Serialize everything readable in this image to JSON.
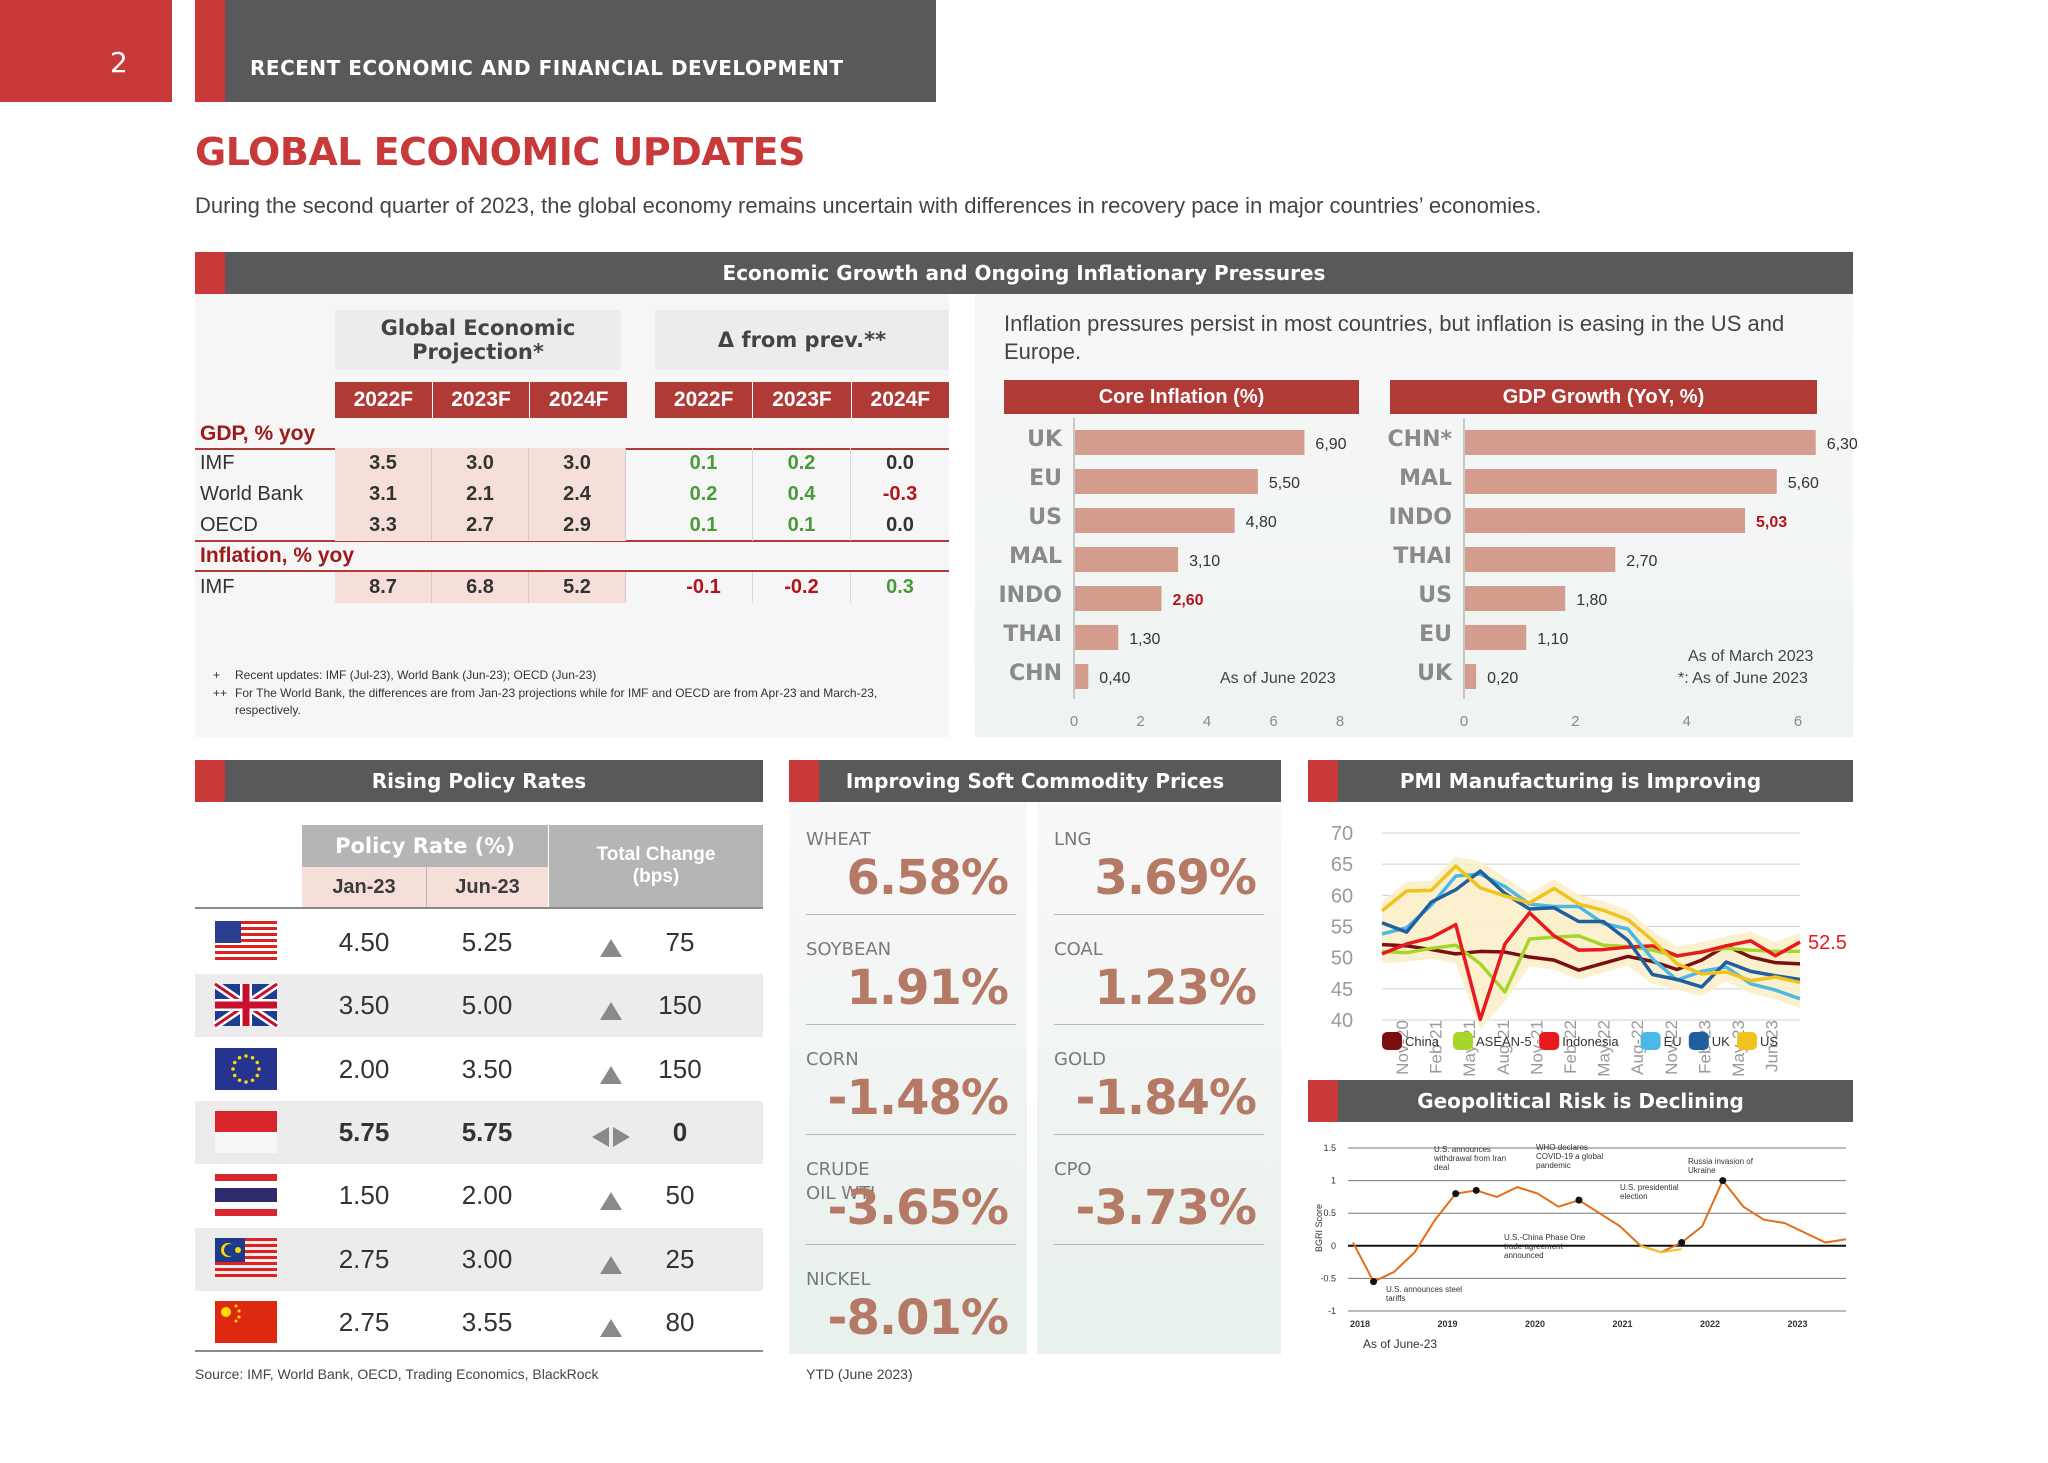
{
  "header": {
    "page_number": "2",
    "section_title": "RECENT ECONOMIC AND FINANCIAL DEVELOPMENT",
    "colors": {
      "accent": "#c8393a",
      "dark": "#58595b"
    }
  },
  "page_title": "GLOBAL ECONOMIC UPDATES",
  "intro": "During the second quarter of 2023, the global economy remains uncertain with differences in recovery pace in major countries’ economies.",
  "growth_section": {
    "title": "Economic Growth and Ongoing Inflationary Pressures",
    "projection_header": "Global Economic Projection*",
    "delta_header": "Δ from prev.**",
    "years": [
      "2022F",
      "2023F",
      "2024F",
      "2022F",
      "2023F",
      "2024F"
    ],
    "gdp_label": "GDP, % yoy",
    "inflation_label": "Inflation, % yoy",
    "rows": [
      {
        "name": "IMF",
        "proj": [
          "3.5",
          "3.0",
          "3.0"
        ],
        "delta": [
          "0.1",
          "0.2",
          "0.0"
        ]
      },
      {
        "name": "World Bank",
        "proj": [
          "3.1",
          "2.1",
          "2.4"
        ],
        "delta": [
          "0.2",
          "0.4",
          "-0.3"
        ]
      },
      {
        "name": "OECD",
        "proj": [
          "3.3",
          "2.7",
          "2.9"
        ],
        "delta": [
          "0.1",
          "0.1",
          "0.0"
        ]
      }
    ],
    "inflation_rows": [
      {
        "name": "IMF",
        "proj": [
          "8.7",
          "6.8",
          "5.2"
        ],
        "delta": [
          "-0.1",
          "-0.2",
          "0.3"
        ]
      }
    ],
    "notes": {
      "bullet1": "+",
      "note1": "Recent updates: IMF (Jul-23), World Bank (Jun-23); OECD (Jun-23)",
      "bullet2": "++",
      "note2": "For The World Bank, the differences are from Jan-23 projections while for IMF and OECD are from Apr-23 and March-23, respectively."
    },
    "inflation_text": "Inflation pressures persist in most countries, but inflation is easing in the US and Europe."
  },
  "chart_data": [
    {
      "type": "bar",
      "orientation": "horizontal",
      "title": "Core Inflation (%)",
      "categories": [
        "UK",
        "EU",
        "US",
        "MAL",
        "INDO",
        "THAI",
        "CHN"
      ],
      "values": [
        6.9,
        5.5,
        4.8,
        3.1,
        2.6,
        1.3,
        0.4
      ],
      "value_labels": [
        "6,90",
        "5,50",
        "4,80",
        "3,10",
        "2,60",
        "1,30",
        "0,40"
      ],
      "highlight": "INDO",
      "xlim": [
        0,
        8
      ],
      "ticks": [
        "0",
        "2",
        "4",
        "6",
        "8"
      ],
      "note": "As of June 2023",
      "bar_color": "#d39c8c",
      "highlight_color": "#b3141c"
    },
    {
      "type": "bar",
      "orientation": "horizontal",
      "title": "GDP Growth (YoY, %)",
      "categories": [
        "CHN*",
        "MAL",
        "INDO",
        "THAI",
        "US",
        "EU",
        "UK"
      ],
      "values": [
        6.3,
        5.6,
        5.03,
        2.7,
        1.8,
        1.1,
        0.2
      ],
      "value_labels": [
        "6,30",
        "5,60",
        "5,03",
        "2,70",
        "1,80",
        "1,10",
        "0,20"
      ],
      "highlight": "INDO",
      "xlim": [
        0,
        6
      ],
      "ticks": [
        "0",
        "2",
        "4",
        "6"
      ],
      "note1": "As of March 2023",
      "note2": "*: As of June 2023",
      "bar_color": "#d39c8c",
      "highlight_color": "#b3141c"
    },
    {
      "type": "line",
      "title": "PMI Manufacturing is Improving",
      "ylim": [
        40,
        70
      ],
      "yticks": [
        "70",
        "65",
        "60",
        "55",
        "50",
        "45",
        "40"
      ],
      "xticks": [
        "Nov-20",
        "Feb-21",
        "May-21",
        "Aug-21",
        "Nov-21",
        "Feb-22",
        "May-22",
        "Aug-22",
        "Nov-22",
        "Feb-23",
        "May-23",
        "Jun-23"
      ],
      "last_label": "52.5",
      "series": [
        {
          "name": "China",
          "color": "#7b0f0f",
          "values": [
            52.1,
            51.9,
            51.3,
            50.6,
            51.0,
            50.9,
            50.1,
            49.6,
            48.0,
            49.1,
            50.2,
            49.4,
            48.1,
            49.6,
            51.9,
            50.1,
            49.2,
            49.0
          ]
        },
        {
          "name": "ASEAN-5",
          "color": "#a7d62b",
          "values": [
            51.0,
            50.8,
            51.5,
            52.0,
            49.0,
            44.5,
            53.0,
            53.3,
            53.5,
            52.0,
            51.8,
            51.2,
            50.2,
            51.0,
            51.5,
            51.2,
            51.0,
            51.0
          ]
        },
        {
          "name": "Indonesia",
          "color": "#e8191f",
          "values": [
            50.6,
            52.2,
            53.2,
            55.3,
            40.1,
            52.2,
            57.2,
            53.5,
            51.2,
            51.3,
            51.7,
            51.9,
            50.3,
            50.9,
            51.9,
            52.7,
            50.3,
            52.5
          ]
        },
        {
          "name": "EU",
          "color": "#4cb8e6",
          "values": [
            53.8,
            54.8,
            58.4,
            63.1,
            63.4,
            61.4,
            58.6,
            58.2,
            58.2,
            55.5,
            54.6,
            49.8,
            46.4,
            47.8,
            48.5,
            45.8,
            44.8,
            43.4
          ]
        },
        {
          "name": "UK",
          "color": "#1f5fa0",
          "values": [
            55.6,
            54.1,
            58.9,
            60.9,
            63.9,
            60.3,
            57.8,
            58.0,
            55.8,
            55.8,
            52.8,
            47.3,
            46.5,
            45.3,
            49.3,
            47.8,
            47.1,
            46.5
          ]
        },
        {
          "name": "US",
          "color": "#f2c21f",
          "values": [
            57.5,
            60.7,
            60.8,
            64.7,
            61.2,
            59.9,
            58.8,
            61.1,
            58.6,
            57.6,
            56.1,
            52.8,
            49.0,
            47.4,
            47.7,
            46.3,
            46.9,
            46.0
          ]
        }
      ]
    },
    {
      "type": "line",
      "title": "Geopolitical Risk is Declining",
      "ylabel": "BGRI Score",
      "ylim": [
        -1,
        1.5
      ],
      "yticks": [
        "1.5",
        "1",
        "0.5",
        "0",
        "-0.5",
        "-1"
      ],
      "xticks": [
        "2018",
        "2019",
        "2020",
        "2021",
        "2022",
        "2023"
      ],
      "note": "As of June-23",
      "annotations": [
        "U.S. announces withdrawal from Iran deal",
        "WHO declares COVID-19 a global pandemic",
        "U.S. presidential election",
        "Russia invasion of Ukraine",
        "U.S.-China Phase One trade agreement announced",
        "U.S. announces steel tariffs"
      ],
      "series": [
        {
          "name": "BGRI",
          "color": "#e36d1a",
          "values": [
            0.05,
            -0.55,
            -0.4,
            -0.1,
            0.4,
            0.8,
            0.85,
            0.75,
            0.9,
            0.8,
            0.6,
            0.7,
            0.5,
            0.3,
            0.0,
            -0.1,
            0.05,
            0.3,
            1.0,
            0.6,
            0.4,
            0.35,
            0.2,
            0.05,
            0.1
          ]
        },
        {
          "name": "BGRI-low",
          "color": "#f2c21f",
          "values": [
            null,
            null,
            null,
            null,
            null,
            null,
            null,
            null,
            null,
            null,
            null,
            null,
            null,
            null,
            0.0,
            -0.1,
            -0.05,
            null,
            null,
            null,
            null,
            null,
            null,
            null,
            null
          ]
        }
      ]
    }
  ],
  "policy_rates": {
    "title": "Rising Policy Rates",
    "rate_header": "Policy Rate (%)",
    "col_jan": "Jan-23",
    "col_jun": "Jun-23",
    "change_header": "Total Change (bps)",
    "rows": [
      {
        "country": "US",
        "jan": "4.50",
        "jun": "5.25",
        "change": "75"
      },
      {
        "country": "UK",
        "jan": "3.50",
        "jun": "5.00",
        "change": "150"
      },
      {
        "country": "EU",
        "jan": "2.00",
        "jun": "3.50",
        "change": "150"
      },
      {
        "country": "Indonesia",
        "jan": "5.75",
        "jun": "5.75",
        "change": "0"
      },
      {
        "country": "Thailand",
        "jan": "1.50",
        "jun": "2.00",
        "change": "50"
      },
      {
        "country": "Malaysia",
        "jan": "2.75",
        "jun": "3.00",
        "change": "25"
      },
      {
        "country": "China",
        "jan": "2.75",
        "jun": "3.55",
        "change": "80"
      }
    ],
    "source": "Source: IMF, World Bank, OECD, Trading Economics, BlackRock"
  },
  "commodities": {
    "title": "Improving Soft Commodity Prices",
    "items": [
      {
        "label": "WHEAT",
        "value": "6.58%"
      },
      {
        "label": "LNG",
        "value": "3.69%"
      },
      {
        "label": "SOYBEAN",
        "value": "1.91%"
      },
      {
        "label": "COAL",
        "value": "1.23%"
      },
      {
        "label": "CORN",
        "value": "-1.48%"
      },
      {
        "label": "GOLD",
        "value": "-1.84%"
      },
      {
        "label": "CRUDE OIL WTI",
        "value": "-3.65%"
      },
      {
        "label": "CPO",
        "value": "-3.73%"
      },
      {
        "label": "NICKEL",
        "value": "-8.01%"
      }
    ],
    "note": "YTD (June 2023)"
  }
}
